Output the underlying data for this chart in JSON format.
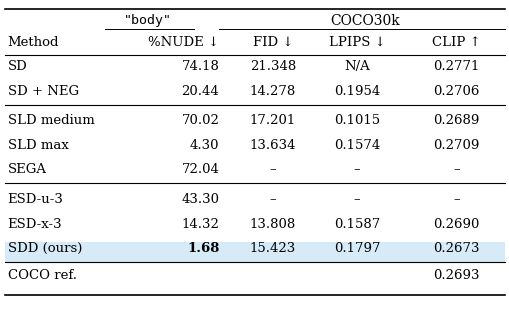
{
  "title_body": "\"body\"",
  "title_coco": "COCO30k",
  "col_headers": [
    "Method",
    "%NUDE ↓",
    "FID ↓",
    "LPIPS ↓",
    "CLIP ↑"
  ],
  "rows": [
    {
      "method": "SD",
      "nude": "74.18",
      "fid": "21.348",
      "lpips": "N/A",
      "clip": "0.2771",
      "bold_nude": false,
      "highlight": false,
      "group": 1
    },
    {
      "method": "SD + NEG",
      "nude": "20.44",
      "fid": "14.278",
      "lpips": "0.1954",
      "clip": "0.2706",
      "bold_nude": false,
      "highlight": false,
      "group": 1
    },
    {
      "method": "SLD medium",
      "nude": "70.02",
      "fid": "17.201",
      "lpips": "0.1015",
      "clip": "0.2689",
      "bold_nude": false,
      "highlight": false,
      "group": 2
    },
    {
      "method": "SLD max",
      "nude": "4.30",
      "fid": "13.634",
      "lpips": "0.1574",
      "clip": "0.2709",
      "bold_nude": false,
      "highlight": false,
      "group": 2
    },
    {
      "method": "SEGA",
      "nude": "72.04",
      "fid": "–",
      "lpips": "–",
      "clip": "–",
      "bold_nude": false,
      "highlight": false,
      "group": 2
    },
    {
      "method": "ESD-u-3",
      "nude": "43.30",
      "fid": "–",
      "lpips": "–",
      "clip": "–",
      "bold_nude": false,
      "highlight": false,
      "group": 3
    },
    {
      "method": "ESD-x-3",
      "nude": "14.32",
      "fid": "13.808",
      "lpips": "0.1587",
      "clip": "0.2690",
      "bold_nude": false,
      "highlight": false,
      "group": 3
    },
    {
      "method": "SDD (ours)",
      "nude": "1.68",
      "fid": "15.423",
      "lpips": "0.1797",
      "clip": "0.2673",
      "bold_nude": true,
      "highlight": true,
      "group": 3
    }
  ],
  "footer": {
    "method": "COCO ref.",
    "nude": "",
    "fid": "",
    "lpips": "",
    "clip": "0.2693"
  },
  "highlight_color": "#d6eaf8",
  "bg_color": "#ffffff",
  "font_size": 9.5
}
